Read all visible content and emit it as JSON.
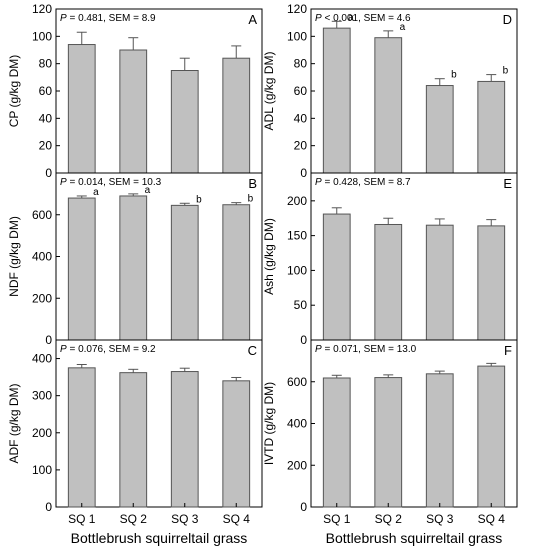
{
  "chart_data": [
    {
      "type": "bar",
      "panel": "A",
      "stats_p": "P",
      "stats_rest": " = 0.481, SEM = 8.9",
      "ylabel": "CP (g/kg DM)",
      "categories": [
        "SQ 1",
        "SQ 2",
        "SQ 3",
        "SQ 4"
      ],
      "values": [
        94,
        90,
        75,
        84
      ],
      "errors": [
        9,
        9,
        9,
        9
      ],
      "letters": [
        "",
        "",
        "",
        ""
      ],
      "ylim": [
        0,
        120
      ],
      "yticks": [
        0,
        20,
        40,
        60,
        80,
        100,
        120
      ]
    },
    {
      "type": "bar",
      "panel": "B",
      "stats_p": "P",
      "stats_rest": " = 0.014, SEM = 10.3",
      "ylabel": "NDF (g/kg DM)",
      "categories": [
        "SQ 1",
        "SQ 2",
        "SQ 3",
        "SQ 4"
      ],
      "values": [
        680,
        690,
        645,
        648
      ],
      "errors": [
        10,
        10,
        10,
        10
      ],
      "letters": [
        "a",
        "a",
        "b",
        "b"
      ],
      "ylim": [
        0,
        800
      ],
      "yticks": [
        0,
        200,
        400,
        600
      ]
    },
    {
      "type": "bar",
      "panel": "C",
      "stats_p": "P",
      "stats_rest": " = 0.076, SEM = 9.2",
      "ylabel": "ADF (g/kg DM)",
      "categories": [
        "SQ 1",
        "SQ 2",
        "SQ 3",
        "SQ 4"
      ],
      "values": [
        375,
        362,
        365,
        340
      ],
      "errors": [
        9,
        9,
        9,
        9
      ],
      "letters": [
        "",
        "",
        "",
        ""
      ],
      "ylim": [
        0,
        450
      ],
      "yticks": [
        0,
        100,
        200,
        300,
        400
      ]
    },
    {
      "type": "bar",
      "panel": "D",
      "stats_p": "P",
      "stats_rest": " < 0.001, SEM = 4.6",
      "ylabel": "ADL (g/kg DM)",
      "categories": [
        "SQ 1",
        "SQ 2",
        "SQ 3",
        "SQ 4"
      ],
      "values": [
        106,
        99,
        64,
        67
      ],
      "errors": [
        5,
        5,
        5,
        5
      ],
      "letters": [
        "a",
        "a",
        "b",
        "b"
      ],
      "ylim": [
        0,
        120
      ],
      "yticks": [
        0,
        20,
        40,
        60,
        80,
        100,
        120
      ]
    },
    {
      "type": "bar",
      "panel": "E",
      "stats_p": "P",
      "stats_rest": " = 0.428, SEM = 8.7",
      "ylabel": "Ash (g/kg DM)",
      "categories": [
        "SQ 1",
        "SQ 2",
        "SQ 3",
        "SQ 4"
      ],
      "values": [
        181,
        166,
        165,
        164
      ],
      "errors": [
        9,
        9,
        9,
        9
      ],
      "letters": [
        "",
        "",
        "",
        ""
      ],
      "ylim": [
        0,
        240
      ],
      "yticks": [
        0,
        50,
        100,
        150,
        200
      ]
    },
    {
      "type": "bar",
      "panel": "F",
      "stats_p": "P",
      "stats_rest": " = 0.071, SEM = 13.0",
      "ylabel": "IVTD (g/kg DM)",
      "categories": [
        "SQ 1",
        "SQ 2",
        "SQ 3",
        "SQ 4"
      ],
      "values": [
        618,
        620,
        638,
        675
      ],
      "errors": [
        13,
        13,
        13,
        13
      ],
      "letters": [
        "",
        "",
        "",
        ""
      ],
      "ylim": [
        0,
        800
      ],
      "yticks": [
        0,
        200,
        400,
        600
      ]
    }
  ],
  "xlabel": "Bottlebrush squirreltail grass",
  "colors": {
    "bar_fill": "#c0c0c0",
    "bar_stroke": "#555555",
    "axis": "#000000"
  }
}
